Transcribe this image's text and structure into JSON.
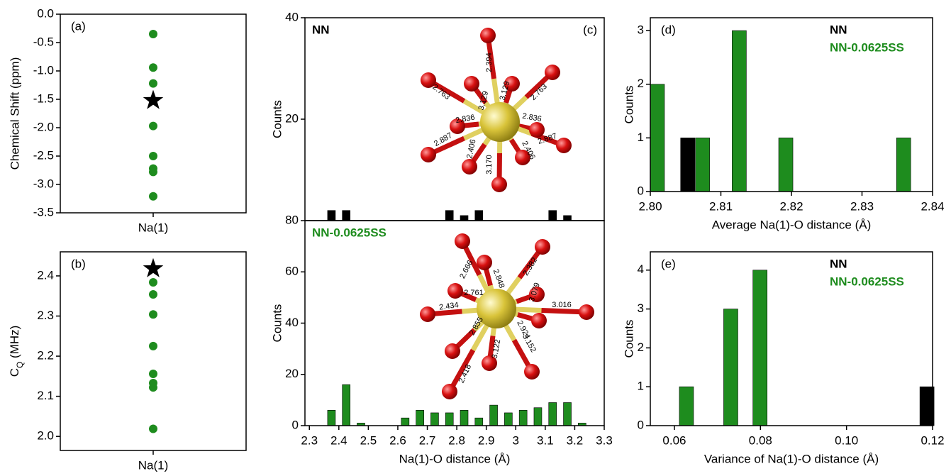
{
  "chart_data": [
    {
      "type": "scatter",
      "panel_label": "(a)",
      "ylabel": "Chemical Shift (ppm)",
      "categories": [
        "Na(1)"
      ],
      "ylim": [
        -3.5,
        0
      ],
      "yticks": [
        {
          "value": 0,
          "label": "0.0"
        },
        -0.5,
        {
          "value": -1,
          "label": "-1.0"
        },
        -1.5,
        {
          "value": -2,
          "label": "-2.0"
        },
        -2.5,
        {
          "value": -3,
          "label": "-3.0"
        },
        -3.5
      ],
      "series": [
        {
          "color": "#1e8c1e",
          "marker": "circle",
          "values": [
            -0.35,
            -0.94,
            -1.22,
            -1.97,
            -2.5,
            -2.72,
            -2.78,
            -3.21
          ]
        },
        {
          "color": "#000000",
          "marker": "star",
          "values": [
            -1.52
          ]
        }
      ]
    },
    {
      "type": "scatter",
      "panel_label": "(b)",
      "ylabel": [
        "C",
        "Q",
        " (MHz)"
      ],
      "categories": [
        "Na(1)"
      ],
      "ylim": [
        1.965,
        2.46
      ],
      "yticks": [
        {
          "value": 2,
          "label": "2.0"
        },
        2.1,
        2.2,
        2.3,
        2.4
      ],
      "series": [
        {
          "color": "#1e8c1e",
          "marker": "circle",
          "values": [
            2.384,
            2.354,
            2.304,
            2.225,
            2.156,
            2.133,
            2.122,
            2.019
          ]
        },
        {
          "color": "#000000",
          "marker": "star",
          "values": [
            2.418
          ]
        }
      ]
    },
    {
      "type": "bar",
      "panel_label": "(c)",
      "ylabel": "Counts",
      "legend": "upper left",
      "xlim": [
        2.285,
        3.3
      ],
      "ylim": [
        0,
        40
      ],
      "yticks": [
        20,
        40
      ],
      "series": [
        {
          "name": "NN",
          "color": "#000000",
          "x": [
            2.375,
            2.425,
            2.775,
            2.825,
            2.875,
            3.125,
            3.175
          ],
          "values": [
            2,
            2,
            2,
            1,
            2,
            2,
            1
          ]
        }
      ],
      "inset_labels": [
        "2.763",
        "3.129",
        "2.394",
        "3.129",
        "2.763",
        "2.836",
        "2.836",
        "2.887",
        "2.406",
        "2.406",
        "2.887",
        "3.170"
      ]
    },
    {
      "type": "bar",
      "ylabel": "Counts",
      "xlabel": "Na(1)-O distance (Å)",
      "legend": "upper left",
      "xlim": [
        2.285,
        3.3
      ],
      "xticks": [
        2.3,
        2.4,
        2.5,
        2.6,
        2.7,
        2.8,
        2.9,
        3.0,
        3.1,
        3.2,
        3.3
      ],
      "ylim": [
        0,
        80
      ],
      "yticks": [
        0,
        20,
        40,
        60,
        80
      ],
      "series": [
        {
          "name": "NN-0.0625SS",
          "color": "#1e8c1e",
          "x": [
            2.375,
            2.425,
            2.475,
            2.625,
            2.675,
            2.725,
            2.775,
            2.825,
            2.875,
            2.925,
            2.975,
            3.025,
            3.075,
            3.125,
            3.175,
            3.225
          ],
          "values": [
            6,
            16,
            1,
            3,
            6,
            5,
            5,
            6,
            3,
            8,
            5,
            6,
            7,
            9,
            9,
            1
          ]
        }
      ],
      "inset_labels": [
        "2.666",
        "2.382",
        "2.848",
        "2.761",
        "3.079",
        "2.434",
        "3.016",
        "2.855",
        "2.924",
        "3.122",
        "3.152",
        "2.418"
      ]
    },
    {
      "type": "bar",
      "panel_label": "(d)",
      "ylabel": "Counts",
      "xlabel": "Average Na(1)-O distance (Å)",
      "legend": "upper right",
      "xlim": [
        2.8,
        2.84
      ],
      "xticks": [
        {
          "value": 2.8,
          "label": "2.80"
        },
        2.81,
        2.82,
        2.83,
        2.84
      ],
      "ylim": [
        0,
        3.24
      ],
      "yticks": [
        0,
        1,
        2,
        3
      ],
      "series": [
        {
          "name": "NN",
          "color": "#000000",
          "x": [
            2.8053
          ],
          "values": [
            1
          ]
        },
        {
          "name": "NN-0.0625SS",
          "color": "#1e8c1e",
          "x": [
            2.801,
            2.8074,
            2.8126,
            2.8192,
            2.8359
          ],
          "values": [
            2,
            1,
            3,
            1,
            1
          ]
        }
      ]
    },
    {
      "type": "bar",
      "panel_label": "(e)",
      "ylabel": "Counts",
      "xlabel": "Variance of Na(1)-O distance (Å)",
      "legend": "upper right",
      "xlim": [
        0.0544,
        0.12
      ],
      "xticks": [
        0.06,
        0.08,
        {
          "value": 0.1,
          "label": "0.10"
        },
        0.12
      ],
      "ylim": [
        0,
        4.47
      ],
      "yticks": [
        0,
        1,
        2,
        3,
        4
      ],
      "series": [
        {
          "name": "NN",
          "color": "#000000",
          "x": [
            0.1187
          ],
          "values": [
            1
          ]
        },
        {
          "name": "NN-0.0625SS",
          "color": "#1e8c1e",
          "x": [
            0.0628,
            0.0731,
            0.0799
          ],
          "values": [
            1,
            3,
            4
          ]
        }
      ]
    }
  ]
}
